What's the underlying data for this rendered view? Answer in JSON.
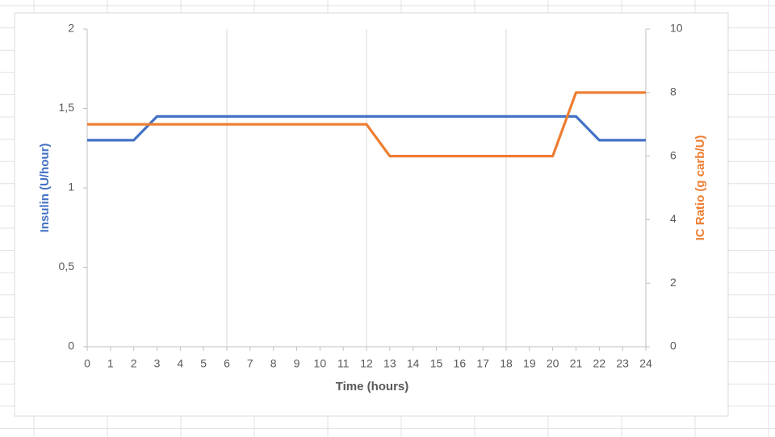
{
  "chart_data": {
    "type": "line",
    "x_label": "Time (hours)",
    "y_label": "Insulin (U/hour)",
    "y2_label": "IC Ratio (g carb/U)",
    "x": [
      0,
      1,
      2,
      3,
      4,
      5,
      6,
      7,
      8,
      9,
      10,
      11,
      12,
      13,
      14,
      15,
      16,
      17,
      18,
      19,
      20,
      21,
      22,
      23,
      24
    ],
    "xlim": [
      0,
      24
    ],
    "xticks": [
      0,
      1,
      2,
      3,
      4,
      5,
      6,
      7,
      8,
      9,
      10,
      11,
      12,
      13,
      14,
      15,
      16,
      17,
      18,
      19,
      20,
      21,
      22,
      23,
      24
    ],
    "ylim": [
      0,
      2
    ],
    "yticks": [
      0,
      {
        "value": 0.5,
        "label": "0,5"
      },
      1,
      {
        "value": 1.5,
        "label": "1,5"
      },
      2
    ],
    "y2lim": [
      0,
      10
    ],
    "y2ticks": [
      0,
      2,
      4,
      6,
      8,
      10
    ],
    "grid": true,
    "series": [
      {
        "name": "Insulin",
        "color": "#4472c4",
        "axis": "y",
        "values": [
          1.3,
          1.3,
          1.3,
          1.45,
          1.45,
          1.45,
          1.45,
          1.45,
          1.45,
          1.45,
          1.45,
          1.45,
          1.45,
          1.45,
          1.45,
          1.45,
          1.45,
          1.45,
          1.45,
          1.45,
          1.45,
          1.45,
          1.3,
          1.3,
          1.3
        ]
      },
      {
        "name": "IC Ratio",
        "color": "#ed7d31",
        "axis": "y2",
        "values": [
          7,
          7,
          7,
          7,
          7,
          7,
          7,
          7,
          7,
          7,
          7,
          7,
          7,
          6,
          6,
          6,
          6,
          6,
          6,
          6,
          6,
          8,
          8,
          8,
          8
        ]
      }
    ]
  }
}
